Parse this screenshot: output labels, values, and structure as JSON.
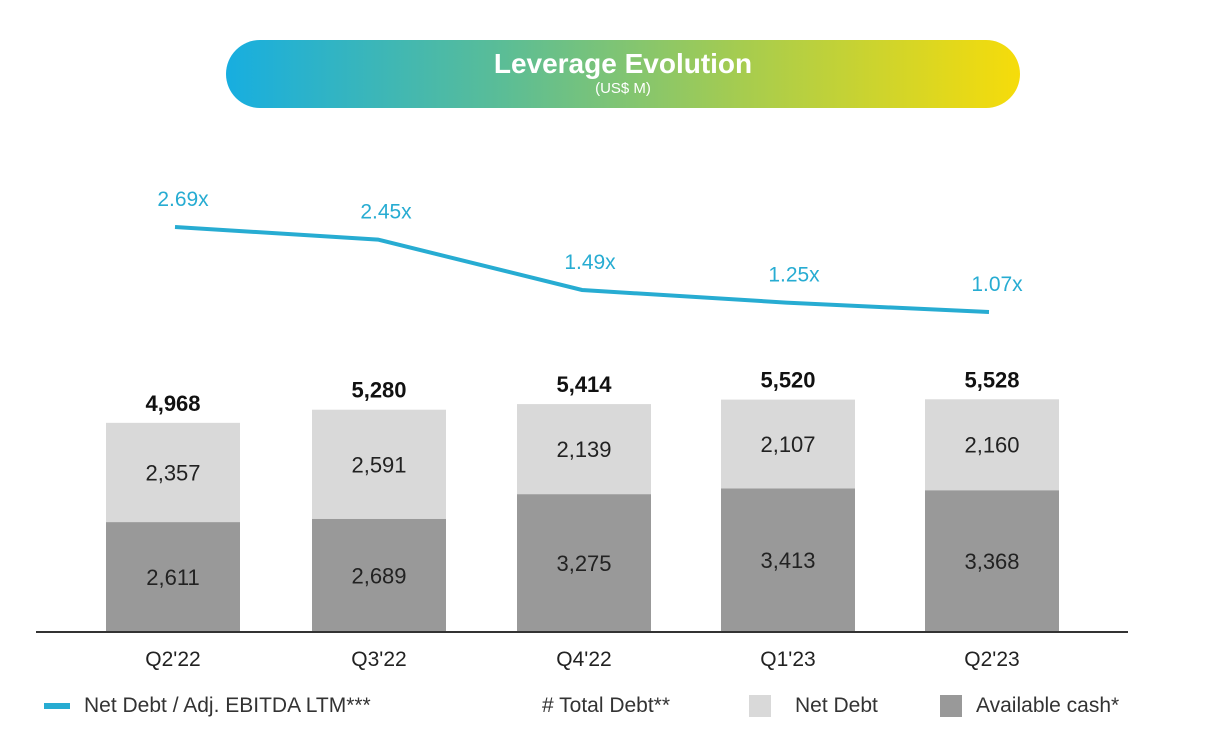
{
  "chart_data": {
    "type": "bar",
    "title": "Leverage Evolution",
    "subtitle": "(US$ M)",
    "categories": [
      "Q2'22",
      "Q3'22",
      "Q4'22",
      "Q1'23",
      "Q2'23"
    ],
    "series": [
      {
        "name": "Available cash*",
        "type": "stacked-bar",
        "color": "#999999",
        "values": [
          2611,
          2689,
          3275,
          3413,
          3368
        ],
        "labels": [
          "2,611",
          "2,689",
          "3,275",
          "3,413",
          "3,368"
        ]
      },
      {
        "name": "Net Debt",
        "type": "stacked-bar",
        "color": "#d9d9d9",
        "values": [
          2357,
          2591,
          2139,
          2107,
          2160
        ],
        "labels": [
          "2,357",
          "2,591",
          "2,139",
          "2,107",
          "2,160"
        ]
      },
      {
        "name": "# Total Debt**",
        "type": "total-label",
        "values": [
          4968,
          5280,
          5414,
          5520,
          5528
        ],
        "labels": [
          "4,968",
          "5,280",
          "5,414",
          "5,520",
          "5,528"
        ]
      },
      {
        "name": "Net Debt / Adj. EBITDA LTM***",
        "type": "line",
        "color": "#27acd2",
        "values": [
          2.69,
          2.45,
          1.49,
          1.25,
          1.07
        ],
        "labels": [
          "2.69x",
          "2.45x",
          "1.49x",
          "1.25x",
          "1.07x"
        ]
      }
    ],
    "legend": [
      "Net Debt / Adj. EBITDA LTM***",
      "# Total Debt**",
      "Net Debt",
      "Available cash*"
    ],
    "legend_position": "bottom",
    "grid": false
  }
}
